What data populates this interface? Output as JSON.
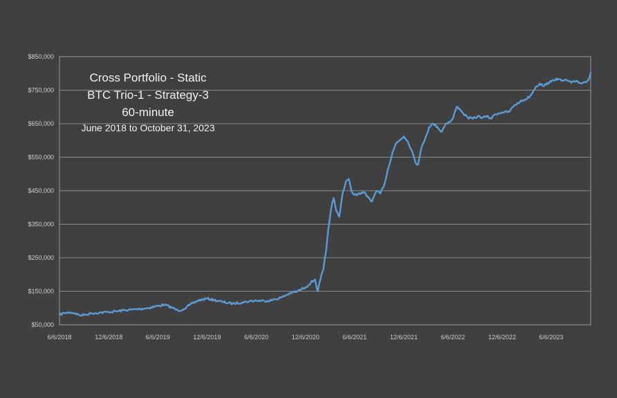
{
  "chart_data": {
    "type": "line",
    "title_lines": [
      "Cross Portfolio - Static",
      "BTC Trio-1 - Strategy-3",
      "60-minute"
    ],
    "subtitle": "June 2018 to October 31, 2023",
    "ylim": [
      50000,
      850000
    ],
    "y_ticks": [
      50000,
      150000,
      250000,
      350000,
      450000,
      550000,
      650000,
      750000,
      850000
    ],
    "y_tick_labels": [
      "$50,000",
      "$150,000",
      "$250,000",
      "$350,000",
      "$450,000",
      "$550,000",
      "$650,000",
      "$750,000",
      "$850,000"
    ],
    "xlim": [
      "2018-06-06",
      "2023-10-31"
    ],
    "x_ticks": [
      "2018-06-06",
      "2018-12-06",
      "2019-06-06",
      "2019-12-06",
      "2020-06-06",
      "2020-12-06",
      "2021-06-06",
      "2021-12-06",
      "2022-06-06",
      "2022-12-06",
      "2023-06-06"
    ],
    "x_tick_labels": [
      "6/6/2018",
      "12/6/2018",
      "6/6/2019",
      "12/6/2019",
      "6/6/2020",
      "12/6/2020",
      "6/6/2021",
      "12/6/2021",
      "6/6/2022",
      "12/6/2022",
      "6/6/2023"
    ],
    "grid": true,
    "legend": "none",
    "line_color": "#5b9bd5",
    "series": [
      {
        "points": [
          [
            "2018-06-06",
            80000
          ],
          [
            "2018-06-25",
            85000
          ],
          [
            "2018-07-15",
            87000
          ],
          [
            "2018-08-05",
            84000
          ],
          [
            "2018-08-20",
            78000
          ],
          [
            "2018-09-10",
            80000
          ],
          [
            "2018-10-01",
            84000
          ],
          [
            "2018-11-01",
            86000
          ],
          [
            "2018-12-06",
            88000
          ],
          [
            "2019-01-01",
            90000
          ],
          [
            "2019-02-01",
            93000
          ],
          [
            "2019-03-01",
            95000
          ],
          [
            "2019-04-01",
            97000
          ],
          [
            "2019-05-01",
            100000
          ],
          [
            "2019-06-06",
            106000
          ],
          [
            "2019-07-01",
            110000
          ],
          [
            "2019-08-01",
            100000
          ],
          [
            "2019-08-20",
            92000
          ],
          [
            "2019-09-10",
            97000
          ],
          [
            "2019-10-01",
            108000
          ],
          [
            "2019-11-01",
            122000
          ],
          [
            "2019-12-06",
            128000
          ],
          [
            "2020-01-01",
            124000
          ],
          [
            "2020-02-01",
            118000
          ],
          [
            "2020-03-10",
            113000
          ],
          [
            "2020-04-15",
            117000
          ],
          [
            "2020-05-10",
            120000
          ],
          [
            "2020-06-06",
            122000
          ],
          [
            "2020-07-06",
            121000
          ],
          [
            "2020-08-06",
            124000
          ],
          [
            "2020-09-06",
            131000
          ],
          [
            "2020-10-06",
            143000
          ],
          [
            "2020-11-06",
            150000
          ],
          [
            "2020-12-06",
            162000
          ],
          [
            "2020-12-25",
            175000
          ],
          [
            "2021-01-10",
            185000
          ],
          [
            "2021-01-20",
            150000
          ],
          [
            "2021-01-30",
            185000
          ],
          [
            "2021-02-10",
            215000
          ],
          [
            "2021-02-20",
            270000
          ],
          [
            "2021-03-01",
            340000
          ],
          [
            "2021-03-12",
            400000
          ],
          [
            "2021-03-20",
            428000
          ],
          [
            "2021-03-30",
            390000
          ],
          [
            "2021-04-10",
            372000
          ],
          [
            "2021-04-22",
            440000
          ],
          [
            "2021-05-05",
            478000
          ],
          [
            "2021-05-15",
            485000
          ],
          [
            "2021-05-25",
            450000
          ],
          [
            "2021-06-06",
            438000
          ],
          [
            "2021-06-25",
            440000
          ],
          [
            "2021-07-10",
            445000
          ],
          [
            "2021-07-25",
            432000
          ],
          [
            "2021-08-10",
            418000
          ],
          [
            "2021-08-25",
            448000
          ],
          [
            "2021-09-10",
            442000
          ],
          [
            "2021-09-25",
            470000
          ],
          [
            "2021-10-10",
            520000
          ],
          [
            "2021-10-25",
            565000
          ],
          [
            "2021-11-06",
            590000
          ],
          [
            "2021-11-20",
            600000
          ],
          [
            "2021-12-06",
            612000
          ],
          [
            "2021-12-20",
            598000
          ],
          [
            "2022-01-05",
            570000
          ],
          [
            "2022-01-18",
            535000
          ],
          [
            "2022-01-28",
            528000
          ],
          [
            "2022-02-10",
            580000
          ],
          [
            "2022-02-25",
            610000
          ],
          [
            "2022-03-10",
            640000
          ],
          [
            "2022-03-25",
            650000
          ],
          [
            "2022-04-10",
            640000
          ],
          [
            "2022-04-25",
            625000
          ],
          [
            "2022-05-10",
            650000
          ],
          [
            "2022-05-25",
            655000
          ],
          [
            "2022-06-06",
            665000
          ],
          [
            "2022-06-20",
            700000
          ],
          [
            "2022-07-01",
            695000
          ],
          [
            "2022-07-15",
            680000
          ],
          [
            "2022-08-01",
            668000
          ],
          [
            "2022-08-20",
            665000
          ],
          [
            "2022-09-06",
            672000
          ],
          [
            "2022-09-25",
            668000
          ],
          [
            "2022-10-10",
            672000
          ],
          [
            "2022-10-25",
            665000
          ],
          [
            "2022-11-10",
            678000
          ],
          [
            "2022-12-06",
            684000
          ],
          [
            "2023-01-01",
            685000
          ],
          [
            "2023-01-20",
            705000
          ],
          [
            "2023-02-10",
            715000
          ],
          [
            "2023-03-01",
            722000
          ],
          [
            "2023-03-20",
            732000
          ],
          [
            "2023-04-10",
            760000
          ],
          [
            "2023-04-25",
            770000
          ],
          [
            "2023-05-10",
            762000
          ],
          [
            "2023-05-25",
            772000
          ],
          [
            "2023-06-06",
            775000
          ],
          [
            "2023-06-25",
            785000
          ],
          [
            "2023-07-15",
            778000
          ],
          [
            "2023-08-01",
            780000
          ],
          [
            "2023-08-20",
            772000
          ],
          [
            "2023-09-10",
            778000
          ],
          [
            "2023-09-25",
            770000
          ],
          [
            "2023-10-10",
            775000
          ],
          [
            "2023-10-22",
            780000
          ],
          [
            "2023-10-31",
            802000
          ]
        ]
      }
    ]
  }
}
